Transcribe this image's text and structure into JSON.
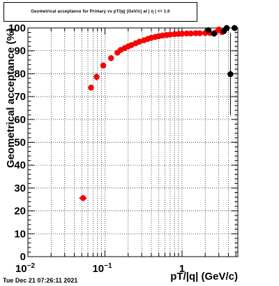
{
  "title": "Geometrical acceptance for Primary vs pT/|q| (GeV/c) at | η | <= 1.0",
  "timestamp": "Tue Dec 21 07:26:11 2021",
  "chart_data": {
    "type": "scatter",
    "title": "Geometrical acceptance for Primary vs pT/|q| (GeV/c) at | η | <= 1.0",
    "xlabel": "pT/|q| (GeV/c)",
    "ylabel": "Geometrical acceptance (%)",
    "xscale": "log",
    "xlim": [
      0.01,
      5.3
    ],
    "ylim": [
      0,
      100
    ],
    "grid": true,
    "x_ticks": [
      {
        "value": 0.01,
        "label": "10",
        "exp": "−2"
      },
      {
        "value": 0.1,
        "label": "10",
        "exp": "−1"
      },
      {
        "value": 1,
        "label": "1",
        "exp": ""
      }
    ],
    "y_ticks": [
      0,
      10,
      20,
      30,
      40,
      50,
      60,
      70,
      80,
      90,
      100
    ],
    "series": [
      {
        "color": "#ff0000",
        "points": [
          {
            "x": 0.052,
            "y": 25.6,
            "xerr": 0.006,
            "yerr": 1.2
          },
          {
            "x": 0.066,
            "y": 73.9,
            "xerr": 0,
            "yerr": 0.8
          },
          {
            "x": 0.078,
            "y": 78.6,
            "xerr": 0.004,
            "yerr": 1.5
          },
          {
            "x": 0.095,
            "y": 83.6,
            "xerr": 0.006,
            "yerr": 0.8
          },
          {
            "x": 0.12,
            "y": 86.8,
            "yerr": 0.4
          },
          {
            "x": 0.145,
            "y": 89.2
          },
          {
            "x": 0.16,
            "y": 90.4
          },
          {
            "x": 0.18,
            "y": 91.2
          },
          {
            "x": 0.2,
            "y": 91.9
          },
          {
            "x": 0.22,
            "y": 92.5
          },
          {
            "x": 0.25,
            "y": 93.3
          },
          {
            "x": 0.28,
            "y": 94.0
          },
          {
            "x": 0.32,
            "y": 94.6
          },
          {
            "x": 0.36,
            "y": 95.2
          },
          {
            "x": 0.4,
            "y": 95.7
          },
          {
            "x": 0.45,
            "y": 96.1
          },
          {
            "x": 0.5,
            "y": 96.4
          },
          {
            "x": 0.56,
            "y": 96.7
          },
          {
            "x": 0.63,
            "y": 96.9
          },
          {
            "x": 0.7,
            "y": 97.1
          },
          {
            "x": 0.8,
            "y": 97.3
          },
          {
            "x": 0.9,
            "y": 97.4
          },
          {
            "x": 1.0,
            "y": 97.5
          },
          {
            "x": 1.15,
            "y": 97.6
          },
          {
            "x": 1.3,
            "y": 97.6
          },
          {
            "x": 1.5,
            "y": 97.7
          },
          {
            "x": 1.7,
            "y": 97.7
          },
          {
            "x": 2.0,
            "y": 97.8
          },
          {
            "x": 2.3,
            "y": 97.8
          },
          {
            "x": 2.7,
            "y": 98.0
          },
          {
            "x": 3.0,
            "y": 99.3
          },
          {
            "x": 3.3,
            "y": 98.2
          }
        ]
      },
      {
        "color": "#000000",
        "points": [
          {
            "x": 2.2,
            "y": 99.0
          },
          {
            "x": 2.6,
            "y": 97.5
          },
          {
            "x": 3.5,
            "y": 98.6
          },
          {
            "x": 3.8,
            "y": 100.0
          },
          {
            "x": 4.25,
            "y": 79.8,
            "yerr": 18.0
          },
          {
            "x": 4.8,
            "y": 100.0
          }
        ]
      }
    ]
  }
}
